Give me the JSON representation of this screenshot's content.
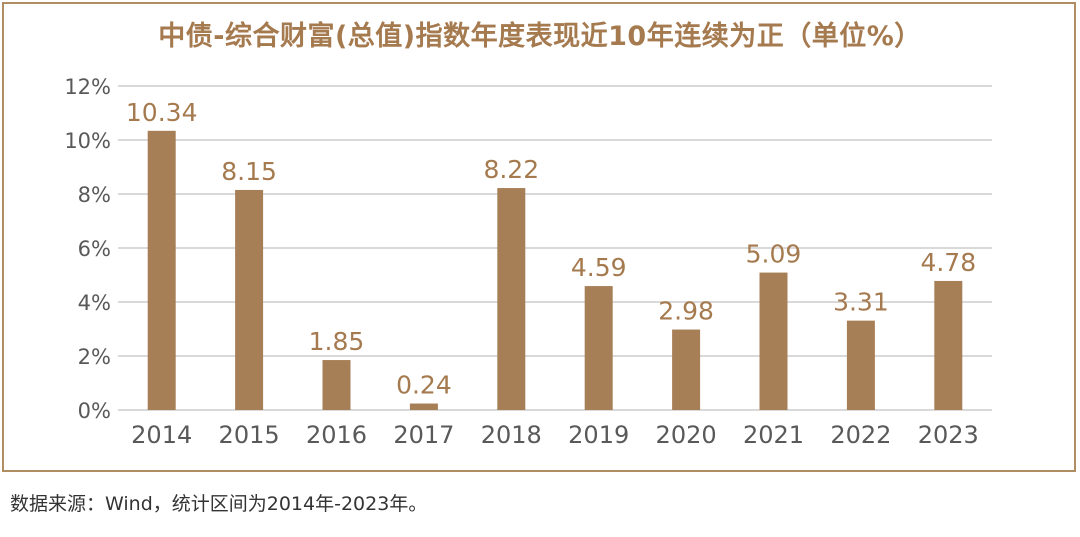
{
  "title": "中债-综合财富(总值)指数年度表现近10年连续为正（单位%）",
  "source": "数据来源：Wind，统计区间为2014年-2023年。",
  "colors": {
    "bar": "#a77f57",
    "label": "#a57a4f",
    "grid": "#d9d9d9",
    "axis_text": "#595959",
    "border": "#b08d62"
  },
  "chart_data": {
    "type": "bar",
    "title": "中债-综合财富(总值)指数年度表现近10年连续为正（单位%）",
    "categories": [
      "2014",
      "2015",
      "2016",
      "2017",
      "2018",
      "2019",
      "2020",
      "2021",
      "2022",
      "2023"
    ],
    "values": [
      10.34,
      8.15,
      1.85,
      0.24,
      8.22,
      4.59,
      2.98,
      5.09,
      3.31,
      4.78
    ],
    "value_labels": [
      "10.34",
      "8.15",
      "1.85",
      "0.24",
      "8.22",
      "4.59",
      "2.98",
      "5.09",
      "3.31",
      "4.78"
    ],
    "ylim": [
      0,
      12
    ],
    "yticks": [
      0,
      2,
      4,
      6,
      8,
      10,
      12
    ],
    "ytick_labels": [
      "0%",
      "2%",
      "4%",
      "6%",
      "8%",
      "10%",
      "12%"
    ],
    "xlabel": "",
    "ylabel": "",
    "grid": true,
    "legend": "none"
  }
}
